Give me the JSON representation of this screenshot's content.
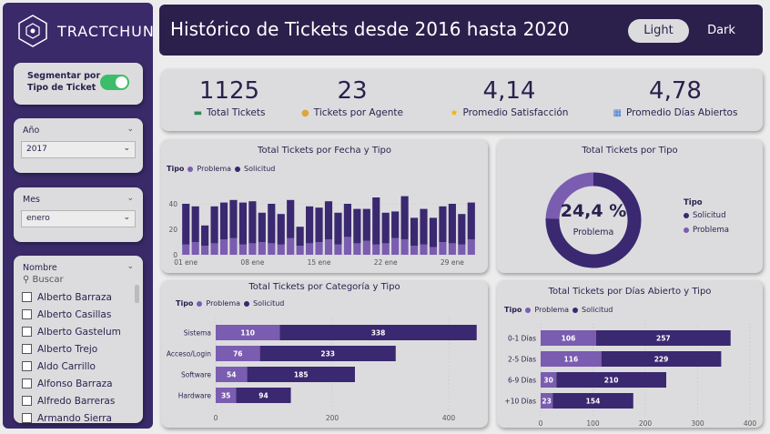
{
  "brand": {
    "name": "TRACTCHUN"
  },
  "header": {
    "title": "Histórico de Tickets desde 2016 hasta 2020",
    "light_label": "Light",
    "dark_label": "Dark"
  },
  "sidebar": {
    "toggle_label": "Segmentar por Tipo de Ticket",
    "anio": {
      "title": "Año",
      "value": "2017"
    },
    "mes": {
      "title": "Mes",
      "value": "enero"
    },
    "nombre": {
      "title": "Nombre",
      "search_placeholder": "Buscar",
      "items": [
        "Alberto Barraza",
        "Alberto Casillas",
        "Alberto Gastelum",
        "Alberto Trejo",
        "Aldo Carrillo",
        "Alfonso Barraza",
        "Alfredo Barreras",
        "Armando Sierra"
      ]
    }
  },
  "kpis": [
    {
      "value": "1125",
      "label": "Total Tickets",
      "icon": "ticket-icon"
    },
    {
      "value": "23",
      "label": "Tickets por Agente",
      "icon": "agent-icon"
    },
    {
      "value": "4,14",
      "label": "Promedio Satisfacción",
      "icon": "star-icon"
    },
    {
      "value": "4,78",
      "label": "Promedio Días Abiertos",
      "icon": "calendar-icon"
    }
  ],
  "colors": {
    "problema": "#7a5cb0",
    "solicitud": "#3a2870",
    "accent": "#2b1f4c"
  },
  "chart_data": [
    {
      "type": "bar",
      "title": "Total Tickets por Fecha y Tipo",
      "legend_title": "Tipo",
      "stacked": true,
      "x_tick_labels": [
        "01 ene",
        "08 ene",
        "15 ene",
        "22 ene",
        "29 ene"
      ],
      "y_ticks": [
        0,
        20,
        40
      ],
      "ylim": [
        0,
        55
      ],
      "series": [
        {
          "name": "Problema",
          "values": [
            8,
            10,
            7,
            9,
            12,
            13,
            8,
            9,
            10,
            9,
            8,
            13,
            7,
            9,
            10,
            12,
            8,
            14,
            9,
            11,
            8,
            9,
            13,
            12,
            7,
            8,
            6,
            10,
            9,
            8,
            12
          ]
        },
        {
          "name": "Solicitud",
          "values": [
            32,
            28,
            16,
            29,
            29,
            30,
            33,
            33,
            23,
            31,
            24,
            30,
            15,
            29,
            27,
            30,
            25,
            26,
            27,
            25,
            37,
            24,
            21,
            34,
            22,
            28,
            23,
            28,
            31,
            24,
            29
          ]
        }
      ]
    },
    {
      "type": "pie",
      "title": "Total Tickets por Tipo",
      "legend_title": "Tipo",
      "center_value": "24,4 %",
      "center_label": "Problema",
      "series": [
        {
          "name": "Solicitud",
          "value": 75.6
        },
        {
          "name": "Problema",
          "value": 24.4
        }
      ]
    },
    {
      "type": "bar",
      "orientation": "horizontal",
      "stacked": true,
      "title": "Total Tickets por Categoría y Tipo",
      "legend_title": "Tipo",
      "categories": [
        "Sistema",
        "Acceso/Login",
        "Software",
        "Hardware"
      ],
      "x_ticks": [
        0,
        200,
        400
      ],
      "xlim": [
        0,
        450
      ],
      "series": [
        {
          "name": "Problema",
          "values": [
            110,
            76,
            54,
            35
          ]
        },
        {
          "name": "Solicitud",
          "values": [
            338,
            233,
            185,
            94
          ]
        }
      ]
    },
    {
      "type": "bar",
      "orientation": "horizontal",
      "stacked": true,
      "title": "Total Tickets por Días Abierto y Tipo",
      "legend_title": "Tipo",
      "categories": [
        "0-1 Días",
        "2-5 Días",
        "6-9 Días",
        "+10 Días"
      ],
      "x_ticks": [
        0,
        100,
        200,
        300,
        400
      ],
      "xlim": [
        0,
        400
      ],
      "series": [
        {
          "name": "Problema",
          "values": [
            106,
            116,
            30,
            23
          ]
        },
        {
          "name": "Solicitud",
          "values": [
            257,
            229,
            210,
            154
          ]
        }
      ]
    }
  ]
}
